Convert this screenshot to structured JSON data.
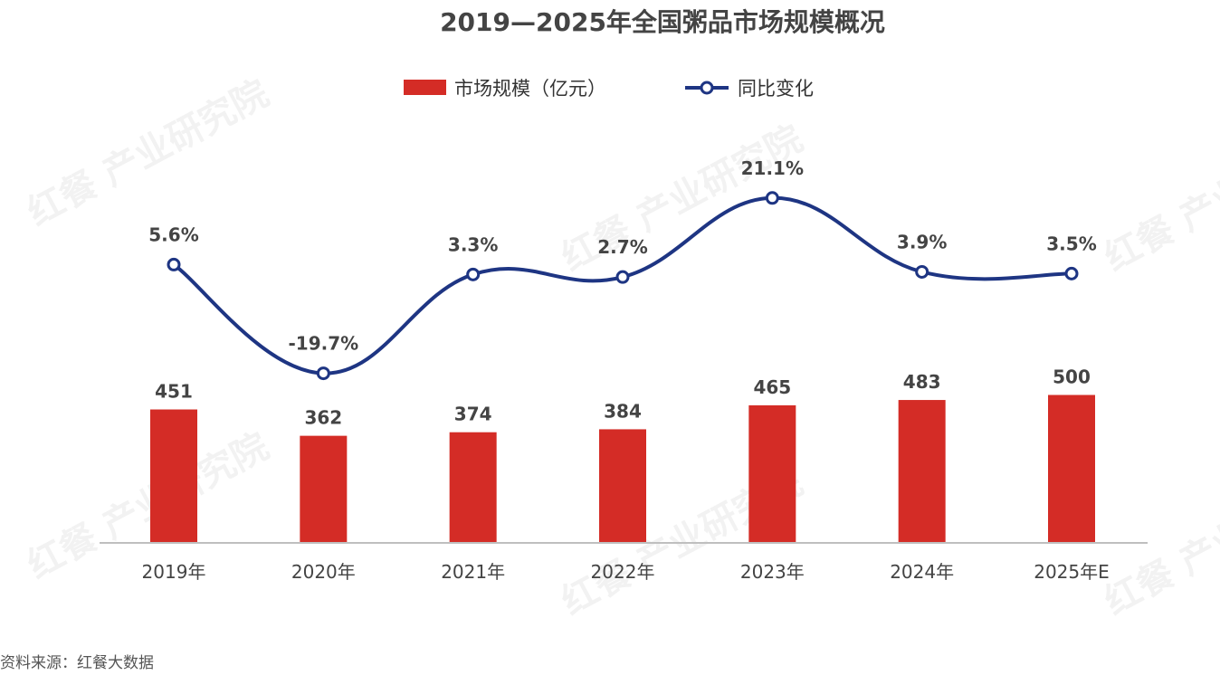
{
  "source": "资料来源：红餐大数据",
  "watermark": {
    "brand": "红餐",
    "text": "产业研究院"
  },
  "colors": {
    "bar": "#d42c26",
    "line": "#1e3583",
    "marker_fill": "#ffffff"
  },
  "chart_data": {
    "type": "bar",
    "title": "2019—2025年全国粥品市场规模概况",
    "categories": [
      "2019年",
      "2020年",
      "2021年",
      "2022年",
      "2023年",
      "2024年",
      "2025年E"
    ],
    "legend_position": "top",
    "grid": false,
    "series": [
      {
        "name": "市场规模（亿元）",
        "type": "bar",
        "axis": "left",
        "values": [
          451,
          362,
          374,
          384,
          465,
          483,
          500
        ],
        "labels": [
          "451",
          "362",
          "374",
          "384",
          "465",
          "483",
          "500"
        ]
      },
      {
        "name": "同比变化",
        "type": "line",
        "axis": "right",
        "smooth": true,
        "values": [
          5.6,
          -19.7,
          3.3,
          2.7,
          21.1,
          3.9,
          3.5
        ],
        "labels": [
          "5.6%",
          "-19.7%",
          "3.3%",
          "2.7%",
          "21.1%",
          "3.9%",
          "3.5%"
        ]
      }
    ],
    "bar_axis_range": [
      0,
      1000
    ],
    "line_axis_range": [
      -60,
      60
    ]
  }
}
